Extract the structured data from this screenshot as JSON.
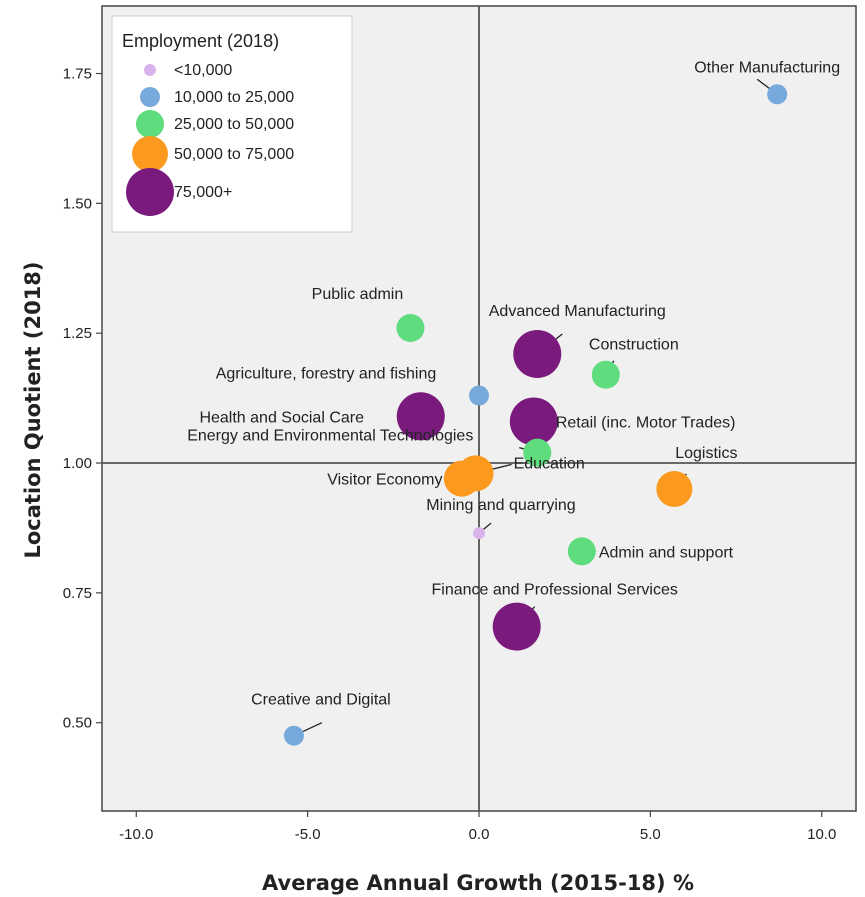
{
  "chart_data": {
    "type": "scatter",
    "xlabel": "Average Annual Growth (2015-18) %",
    "ylabel": "Location Quotient (2018)",
    "xlim": [
      -11.0,
      11.0
    ],
    "ylim": [
      0.33,
      1.88
    ],
    "x_ticks": [
      -10.0,
      -5.0,
      0.0,
      5.0,
      10.0
    ],
    "x_tick_labels": [
      "-10.0",
      "-5.0",
      "0.0",
      "5.0",
      "10.0"
    ],
    "y_ticks": [
      0.5,
      0.75,
      1.0,
      1.25,
      1.5,
      1.75
    ],
    "y_tick_labels": [
      "0.50",
      "0.75",
      "1.00",
      "1.25",
      "1.50",
      "1.75"
    ],
    "reference_lines": {
      "x": 0.0,
      "y": 1.0
    },
    "grid": false,
    "legend": {
      "title": "Employment (2018)",
      "placement": "top-left",
      "entries": [
        {
          "label": "<10,000",
          "color": "#d9b3ec"
        },
        {
          "label": "10,000 to 25,000",
          "color": "#77a9dc"
        },
        {
          "label": "25,000 to 50,000",
          "color": "#5fdc7d"
        },
        {
          "label": "50,000 to 75,000",
          "color": "#fb9a1e"
        },
        {
          "label": "75,000+",
          "color": "#7a1a7c"
        }
      ]
    },
    "points": [
      {
        "label": "Other Manufacturing",
        "x": 8.7,
        "y": 1.71,
        "band": 1
      },
      {
        "label": "Public admin",
        "x": -2.0,
        "y": 1.26,
        "band": 2
      },
      {
        "label": "Advanced Manufacturing",
        "x": 1.7,
        "y": 1.21,
        "band": 4
      },
      {
        "label": "Construction",
        "x": 3.7,
        "y": 1.17,
        "band": 2
      },
      {
        "label": "Agriculture, forestry and fishing",
        "x": 0.0,
        "y": 1.13,
        "band": 1
      },
      {
        "label": "Health and Social Care",
        "x": -1.7,
        "y": 1.09,
        "band": 4
      },
      {
        "label": "Retail (inc. Motor Trades)",
        "x": 1.6,
        "y": 1.08,
        "band": 4
      },
      {
        "label": "Energy and Environmental Technologies",
        "x": 1.7,
        "y": 1.02,
        "band": 2
      },
      {
        "label": "Visitor Economy",
        "x": -0.5,
        "y": 0.97,
        "band": 3
      },
      {
        "label": "Education",
        "x": -0.1,
        "y": 0.98,
        "band": 3
      },
      {
        "label": "Logistics",
        "x": 5.7,
        "y": 0.95,
        "band": 3
      },
      {
        "label": "Mining and quarrying",
        "x": 0.0,
        "y": 0.865,
        "band": 0
      },
      {
        "label": "Admin and support",
        "x": 3.0,
        "y": 0.83,
        "band": 2
      },
      {
        "label": "Finance and Professional Services",
        "x": 1.1,
        "y": 0.685,
        "band": 4
      },
      {
        "label": "Creative and Digital",
        "x": -5.4,
        "y": 0.475,
        "band": 1
      }
    ]
  }
}
